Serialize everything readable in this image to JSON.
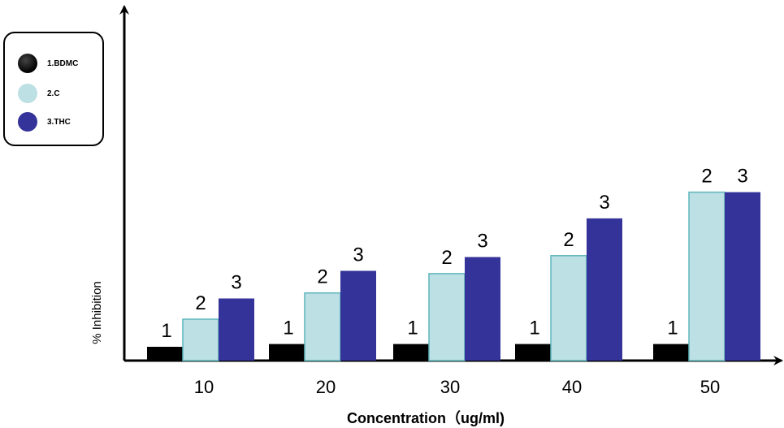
{
  "chart_data": {
    "type": "bar",
    "categories": [
      "10",
      "20",
      "30",
      "40",
      "50"
    ],
    "series": [
      {
        "name": "1.BDMC",
        "values": [
          1.0,
          1.2,
          1.2,
          1.2,
          1.2
        ],
        "color": "#000000",
        "point_label": "1"
      },
      {
        "name": "2.C",
        "values": [
          3.0,
          4.9,
          6.3,
          7.6,
          12.2
        ],
        "color": "#bce0e3",
        "point_label": "2"
      },
      {
        "name": "3.THC",
        "values": [
          4.5,
          6.5,
          7.5,
          10.3,
          12.2
        ],
        "color": "#333399",
        "point_label": "3"
      }
    ],
    "xlabel": "Concentration（ug/ml)",
    "ylabel": "% Inhibition",
    "ylim": [
      0,
      25
    ],
    "grid": false,
    "legend": "top-left"
  }
}
